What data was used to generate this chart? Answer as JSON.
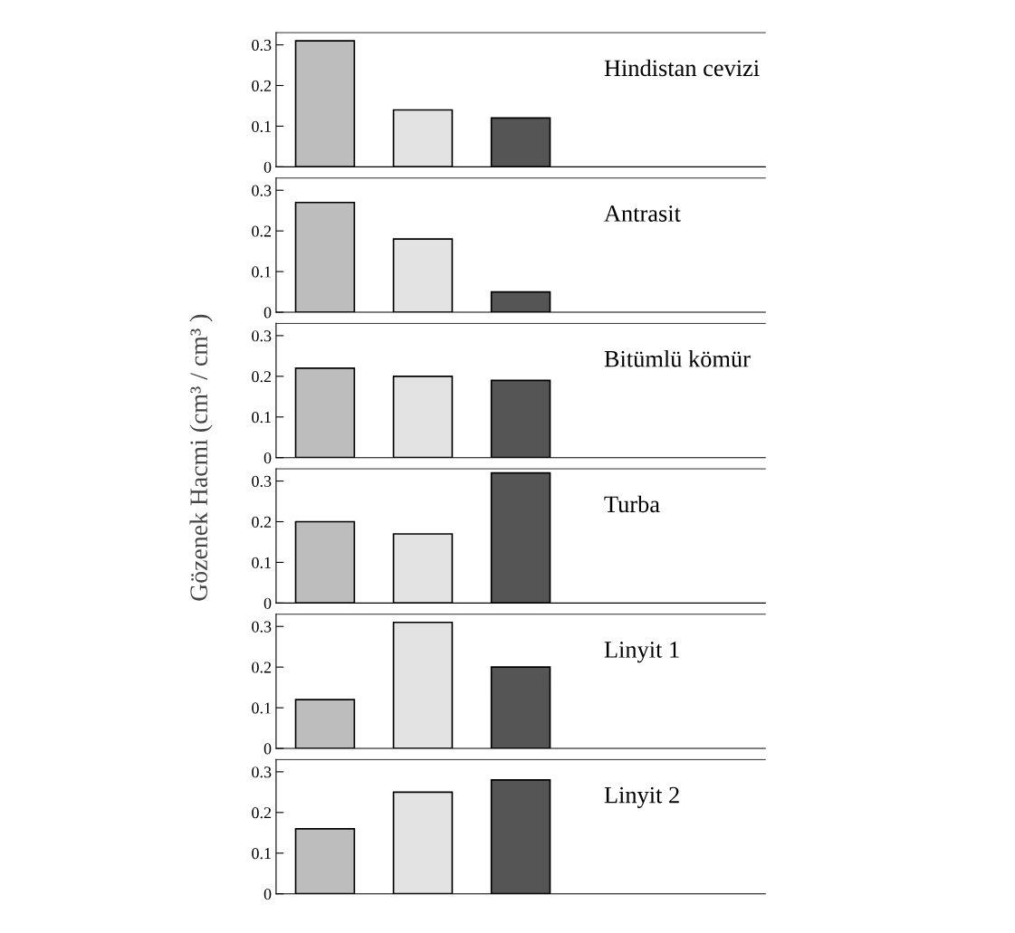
{
  "chart_data": [
    {
      "type": "bar",
      "title": "Hindistan cevizi",
      "categories": [
        null,
        null,
        null,
        null,
        null
      ],
      "values": [
        0.31,
        0.14,
        0.12,
        null,
        null
      ],
      "colors": [
        "#bdbdbd",
        "#e3e3e3",
        "#555555",
        "#bdbdbd",
        "#bdbdbd"
      ],
      "ylim": [
        0,
        0.33
      ],
      "yticks": [
        0,
        0.1,
        0.2,
        0.3
      ],
      "grid": false,
      "legend": false
    },
    {
      "type": "bar",
      "title": "Antrasit",
      "categories": [
        null,
        null,
        null,
        null,
        null
      ],
      "values": [
        0.27,
        0.18,
        0.05,
        null,
        null
      ],
      "colors": [
        "#bdbdbd",
        "#e3e3e3",
        "#555555",
        "#bdbdbd",
        "#bdbdbd"
      ],
      "ylim": [
        0,
        0.33
      ],
      "yticks": [
        0,
        0.1,
        0.2,
        0.3
      ],
      "grid": false,
      "legend": false
    },
    {
      "type": "bar",
      "title": "Bitümlü kömür",
      "ylabel": "Gözenek Hacmi (cm³ / cm³ )",
      "categories": [
        null,
        null,
        null,
        null,
        null
      ],
      "values": [
        0.22,
        0.2,
        0.19,
        null,
        null
      ],
      "colors": [
        "#bdbdbd",
        "#e3e3e3",
        "#555555",
        "#bdbdbd",
        "#bdbdbd"
      ],
      "ylim": [
        0,
        0.33
      ],
      "yticks": [
        0,
        0.1,
        0.2,
        0.3
      ],
      "grid": false,
      "legend": false
    },
    {
      "type": "bar",
      "title": "Turba",
      "categories": [
        null,
        null,
        null,
        null,
        null
      ],
      "values": [
        0.2,
        0.17,
        0.32,
        null,
        null
      ],
      "colors": [
        "#bdbdbd",
        "#e3e3e3",
        "#555555",
        "#bdbdbd",
        "#bdbdbd"
      ],
      "ylim": [
        0,
        0.33
      ],
      "yticks": [
        0,
        0.1,
        0.2,
        0.3
      ],
      "grid": false,
      "legend": false
    },
    {
      "type": "bar",
      "title": "Linyit 1",
      "categories": [
        null,
        null,
        null,
        null,
        null
      ],
      "values": [
        0.12,
        0.31,
        0.2,
        null,
        null
      ],
      "colors": [
        "#bdbdbd",
        "#e3e3e3",
        "#555555",
        "#bdbdbd",
        "#bdbdbd"
      ],
      "ylim": [
        0,
        0.33
      ],
      "yticks": [
        0,
        0.1,
        0.2,
        0.3
      ],
      "grid": false,
      "legend": false
    },
    {
      "type": "bar",
      "title": "Linyit 2",
      "categories": [
        null,
        null,
        null,
        null,
        null
      ],
      "values": [
        0.16,
        0.25,
        0.28,
        null,
        null
      ],
      "colors": [
        "#bdbdbd",
        "#e3e3e3",
        "#555555",
        "#bdbdbd",
        "#bdbdbd"
      ],
      "ylim": [
        0,
        0.33
      ],
      "yticks": [
        0,
        0.1,
        0.2,
        0.3
      ],
      "grid": false,
      "legend": false
    }
  ]
}
